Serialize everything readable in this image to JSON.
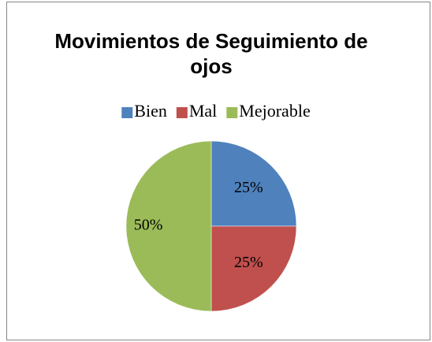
{
  "chart_data": {
    "type": "pie",
    "title": "Movimientos de Seguimiento de ojos",
    "categories": [
      "Bien",
      "Mal",
      "Mejorable"
    ],
    "values": [
      25,
      25,
      50
    ],
    "value_labels": [
      "25%",
      "25%",
      "50%"
    ],
    "colors": [
      "#4f81bd",
      "#c0504d",
      "#9bbb59"
    ],
    "legend": "top"
  }
}
